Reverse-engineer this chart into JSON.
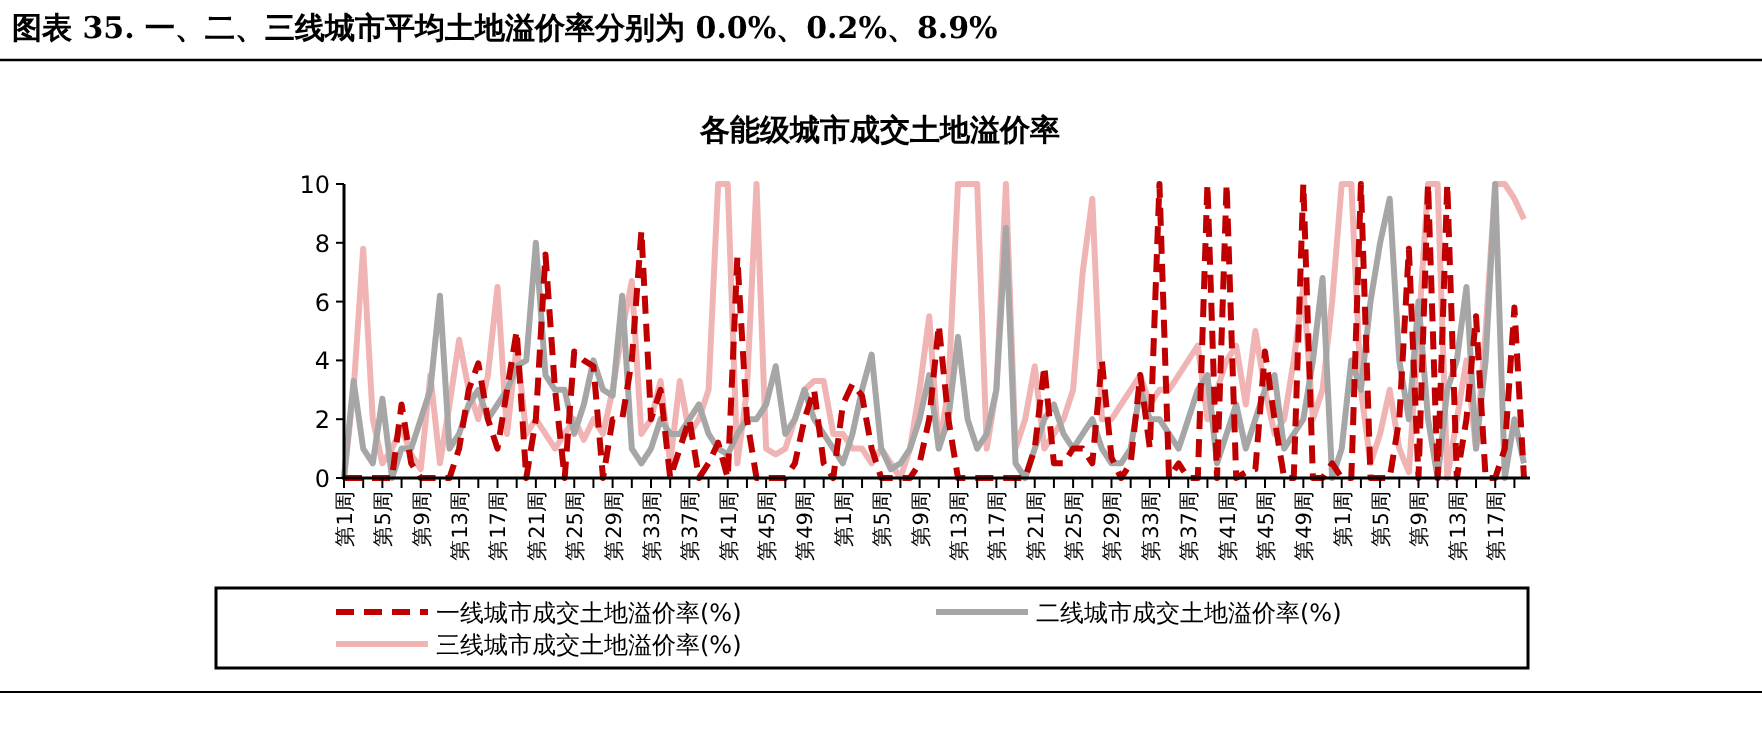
{
  "chart_data": {
    "type": "line",
    "title": "图表 35. 一、二、三线城市平均土地溢价率分别为 0.0%、0.2%、8.9%",
    "subtitle": "各能级城市成交土地溢价率",
    "categories": [
      "第1周",
      null,
      null,
      null,
      "第5周",
      null,
      null,
      null,
      "第9周",
      null,
      null,
      null,
      "第13周",
      null,
      null,
      null,
      "第17周",
      null,
      null,
      null,
      "第21周",
      null,
      null,
      null,
      "第25周",
      null,
      null,
      null,
      "第29周",
      null,
      null,
      null,
      "第33周",
      null,
      null,
      null,
      "第37周",
      null,
      null,
      null,
      "第41周",
      null,
      null,
      null,
      "第45周",
      null,
      null,
      null,
      "第49周",
      null,
      null,
      null,
      "第1周",
      null,
      null,
      null,
      "第5周",
      null,
      null,
      null,
      "第9周",
      null,
      null,
      null,
      "第13周",
      null,
      null,
      null,
      "第17周",
      null,
      null,
      null,
      "第21周",
      null,
      null,
      null,
      "第25周",
      null,
      null,
      null,
      "第29周",
      null,
      null,
      null,
      "第33周",
      null,
      null,
      null,
      "第37周",
      null,
      null,
      null,
      "第41周",
      null,
      null,
      null,
      "第45周",
      null,
      null,
      null,
      "第49周",
      null,
      null,
      null,
      "第1周",
      null,
      null,
      null,
      "第5周",
      null,
      null,
      null,
      "第9周",
      null,
      null,
      null,
      "第13周",
      null,
      null,
      null,
      "第17周",
      null,
      null,
      null
    ],
    "ylim": [
      0,
      10
    ],
    "yticks": [
      0,
      2,
      4,
      6,
      8,
      10
    ],
    "legend": "bottom",
    "grid": false,
    "marker": "none",
    "series": [
      {
        "name": "一线城市成交土地溢价率(%)",
        "color": "#c00000",
        "line_style": "dashed",
        "values": [
          0,
          0,
          0,
          0,
          0,
          0,
          2.5,
          0.5,
          0,
          0,
          0,
          0,
          1,
          3,
          3.9,
          2,
          1,
          3,
          5,
          0,
          2,
          7.6,
          3,
          0,
          4.3,
          4,
          3.8,
          0,
          2,
          2,
          4,
          8.4,
          2,
          3,
          0,
          1,
          2,
          0,
          0.5,
          1.2,
          0,
          7.5,
          2,
          0,
          0,
          0,
          0,
          0.5,
          2,
          3,
          0.5,
          0,
          2.5,
          3.2,
          2.8,
          1,
          0,
          0,
          0,
          0,
          0.5,
          2,
          5.2,
          2,
          0,
          0,
          0,
          0,
          0,
          0,
          0,
          0,
          1,
          3.8,
          0.5,
          0.5,
          1,
          1,
          0.5,
          4,
          0.7,
          0,
          0.5,
          3.5,
          1,
          10,
          0,
          0.5,
          0,
          0,
          10,
          0,
          10,
          0,
          0.2,
          0.3,
          4.3,
          2,
          0,
          0,
          10,
          0,
          0,
          0.5,
          0,
          0,
          10,
          0,
          0,
          0,
          2,
          7.8,
          0,
          10,
          0,
          10,
          0,
          2,
          5.5,
          0,
          0,
          1,
          5.8,
          0
        ]
      },
      {
        "name": "二线城市成交土地溢价率(%)",
        "color": "#a6a6a6",
        "line_style": "solid",
        "values": [
          0,
          3.3,
          1,
          0.5,
          2.7,
          0,
          1,
          1,
          2,
          3,
          6.2,
          1,
          1.5,
          2.5,
          3,
          2,
          2.5,
          3,
          3.8,
          4,
          8,
          3.5,
          3,
          3,
          1.5,
          2.5,
          4,
          3,
          2.8,
          6.2,
          1,
          0.5,
          1,
          2,
          1.5,
          1.5,
          2,
          2.5,
          1.5,
          1,
          0.8,
          1.5,
          2,
          2,
          2.5,
          3.8,
          1.5,
          2,
          3,
          2,
          1.5,
          1,
          0.5,
          1.5,
          3,
          4.2,
          1,
          0.3,
          0.5,
          1,
          2,
          3.5,
          1,
          2,
          4.8,
          2,
          1,
          1.5,
          3,
          8.5,
          0.5,
          0,
          1,
          2,
          2.5,
          1.5,
          1,
          1.5,
          2,
          1,
          0.5,
          0.5,
          1,
          3,
          2,
          2,
          1.5,
          1,
          2,
          3,
          3.5,
          0.5,
          1.5,
          2.5,
          1,
          2,
          3,
          3.5,
          1,
          1.5,
          2,
          4,
          6.8,
          0,
          1,
          4,
          3,
          6,
          8,
          9.5,
          4,
          2,
          6,
          2,
          0,
          3,
          4,
          6.5,
          1,
          4,
          10,
          0,
          2,
          0.5
        ]
      },
      {
        "name": "三线城市成交土地溢价率(%)",
        "color": "#f0b4b4",
        "line_style": "solid",
        "values": [
          0,
          3,
          7.8,
          2,
          0.5,
          1,
          1.7,
          0.8,
          0.3,
          3.5,
          0.5,
          2.5,
          4.7,
          3,
          2,
          3.5,
          6.5,
          1.5,
          4.5,
          1.5,
          2,
          1.5,
          1,
          1.5,
          2,
          1.3,
          2,
          1.5,
          3,
          5,
          6.7,
          1.5,
          2,
          3.3,
          0.5,
          3.3,
          1.5,
          2,
          3,
          10,
          10,
          0.5,
          3,
          10,
          1,
          0.8,
          1,
          2,
          3,
          3.3,
          3.3,
          1.5,
          1.5,
          1,
          1,
          0.5,
          1,
          0.5,
          0,
          1,
          3,
          5.5,
          1,
          3,
          10,
          10,
          10,
          1,
          3,
          10,
          1,
          2,
          3.8,
          1,
          1.5,
          2,
          3,
          7,
          9.5,
          2,
          2,
          2.5,
          3,
          3.5,
          2.5,
          3,
          3,
          3.5,
          4,
          4.5,
          2,
          3,
          4,
          4.5,
          2.5,
          5,
          3,
          1.5,
          2,
          4,
          6.5,
          2,
          3,
          6,
          10,
          10,
          3,
          0.5,
          1.5,
          3,
          1,
          0.2,
          5,
          10,
          10,
          0,
          2,
          4,
          1,
          5,
          10,
          10,
          9.5,
          8.8
        ]
      }
    ]
  }
}
